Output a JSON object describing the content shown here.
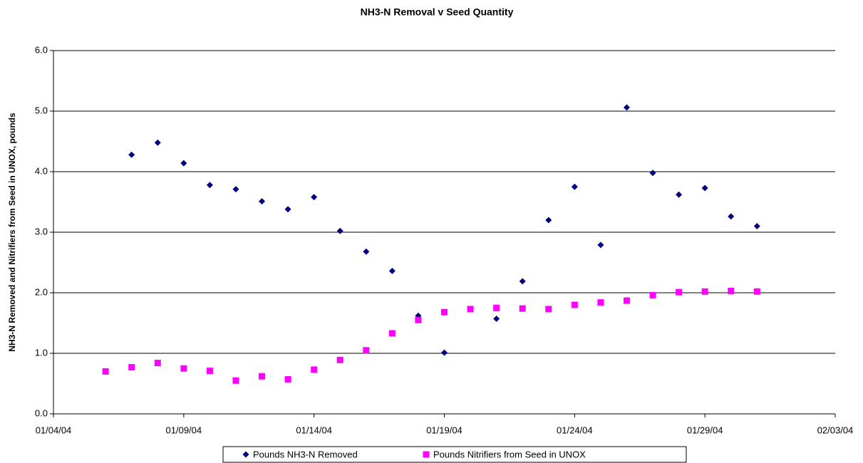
{
  "chart_data": {
    "type": "scatter",
    "title": "NH3-N Removal v Seed Quantity",
    "y_label": "NH3-N Removed and Nitrifiers from Seed in UNOX, pounds",
    "x": [
      "01/06/04",
      "01/07/04",
      "01/08/04",
      "01/09/04",
      "01/10/04",
      "01/11/04",
      "01/12/04",
      "01/13/04",
      "01/14/04",
      "01/15/04",
      "01/16/04",
      "01/17/04",
      "01/18/04",
      "01/19/04",
      "01/20/04",
      "01/21/04",
      "01/22/04",
      "01/23/04",
      "01/24/04",
      "01/25/04",
      "01/26/04",
      "01/27/04",
      "01/28/04",
      "01/29/04",
      "01/30/04",
      "01/31/04"
    ],
    "series": [
      {
        "name": "Pounds NH3-N Removed",
        "color": "#000080",
        "marker": "diamond",
        "values": [
          null,
          4.28,
          4.48,
          4.14,
          3.78,
          3.71,
          3.51,
          3.38,
          3.58,
          3.02,
          2.68,
          2.36,
          1.62,
          1.01,
          null,
          1.57,
          2.19,
          3.2,
          3.75,
          2.79,
          5.06,
          3.98,
          3.62,
          3.73,
          3.26,
          3.1
        ]
      },
      {
        "name": "Pounds Nitrifiers from Seed in UNOX",
        "color": "#ff00ff",
        "marker": "square",
        "values": [
          0.7,
          0.77,
          0.84,
          0.75,
          0.71,
          0.55,
          0.62,
          0.57,
          0.73,
          0.89,
          1.05,
          1.33,
          1.55,
          1.68,
          1.73,
          1.75,
          1.74,
          1.73,
          1.8,
          1.84,
          1.87,
          1.96,
          2.01,
          2.02,
          2.03,
          2.02
        ]
      }
    ],
    "xlim": [
      "01/04/04",
      "02/03/04"
    ],
    "xticks": [
      "01/04/04",
      "01/09/04",
      "01/14/04",
      "01/19/04",
      "01/24/04",
      "01/29/04",
      "02/03/04"
    ],
    "ylim": [
      0,
      6
    ],
    "yticks": [
      {
        "value": 0,
        "label": "0.0"
      },
      {
        "value": 1,
        "label": "1.0"
      },
      {
        "value": 2,
        "label": "2.0"
      },
      {
        "value": 3,
        "label": "3.0"
      },
      {
        "value": 4,
        "label": "4.0"
      },
      {
        "value": 5,
        "label": "5.0"
      },
      {
        "value": 6,
        "label": "6.0"
      }
    ],
    "grid": true,
    "legend": "bottom"
  }
}
